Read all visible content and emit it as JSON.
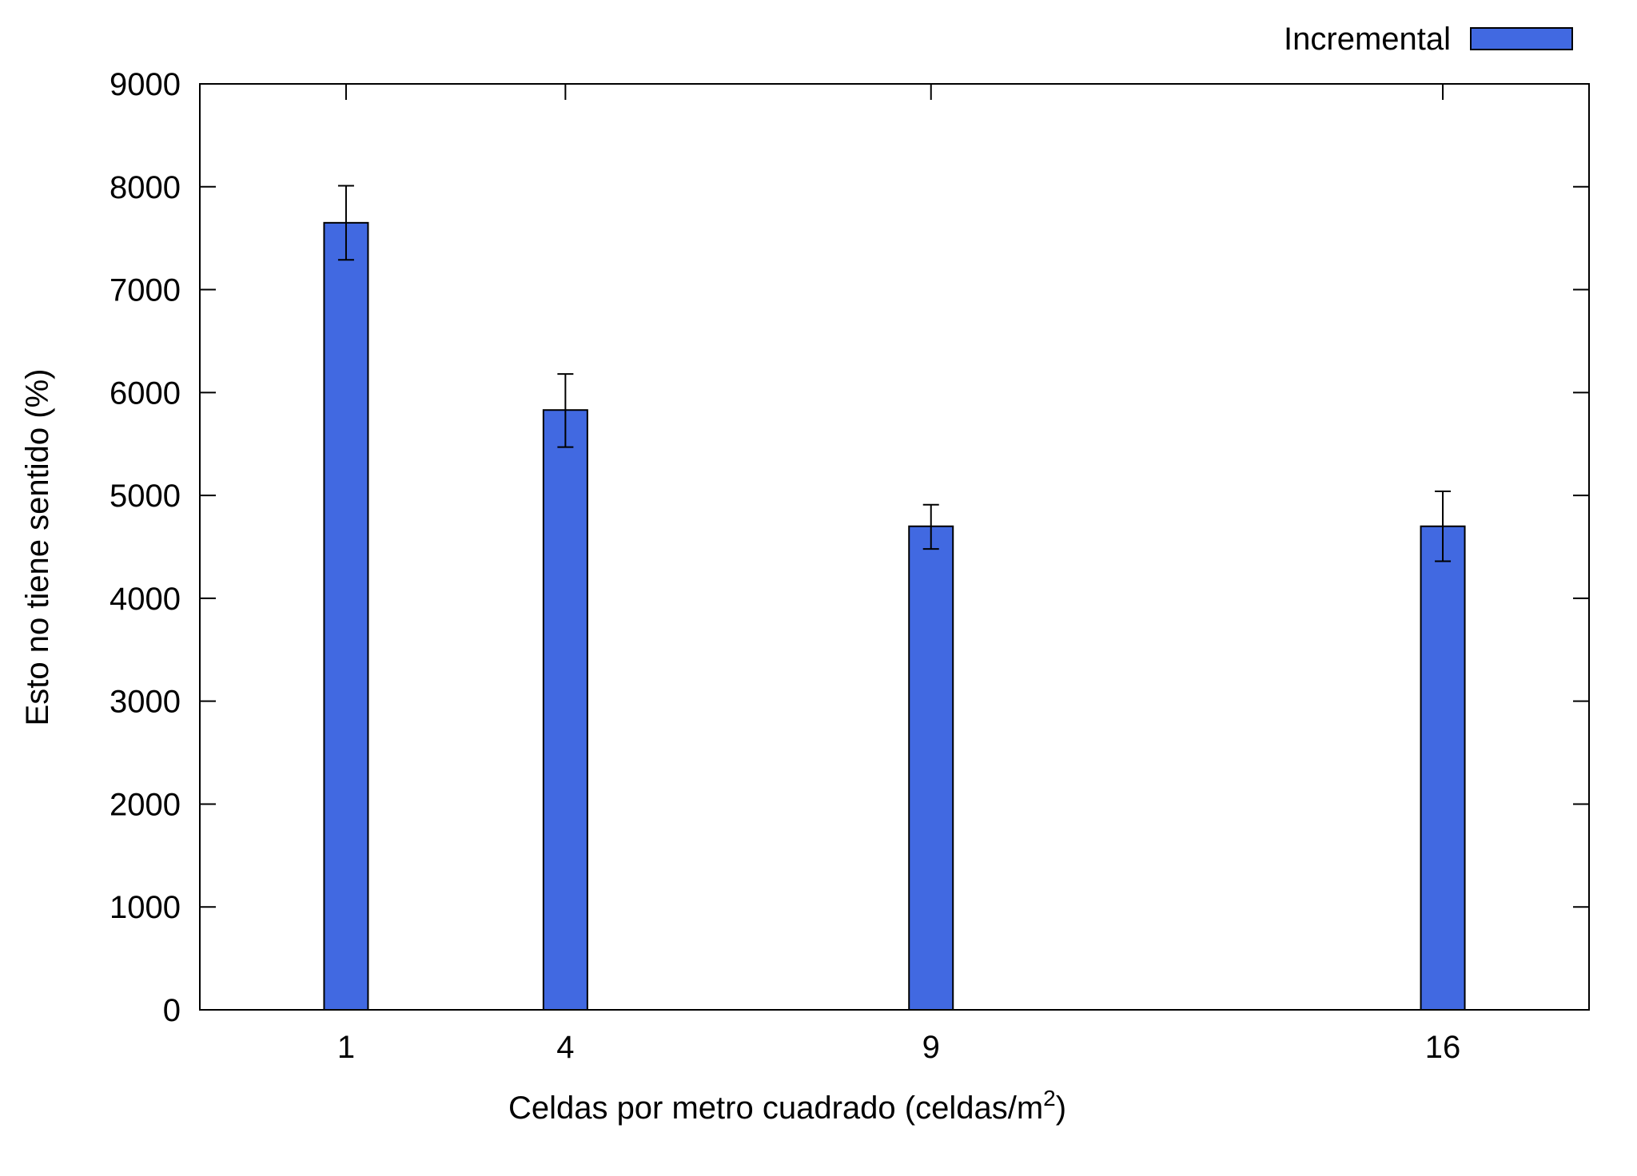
{
  "chart_data": {
    "type": "bar",
    "x": [
      1,
      4,
      9,
      16
    ],
    "categories": [
      "1",
      "4",
      "9",
      "16"
    ],
    "series": [
      {
        "name": "Incremental",
        "values": [
          7650,
          5830,
          4700,
          4700
        ],
        "error_low": [
          7290,
          5470,
          4480,
          4360
        ],
        "error_high": [
          8010,
          6180,
          4910,
          5040
        ]
      }
    ],
    "xlabel": "Celdas por metro cuadrado (celdas/m",
    "xlabel_sup": "2",
    "xlabel_end": ")",
    "ylabel": "Esto no tiene sentido (%)",
    "ylim": [
      0,
      9000
    ],
    "xlim": [
      -1,
      18
    ],
    "yticks": [
      0,
      1000,
      2000,
      3000,
      4000,
      5000,
      6000,
      7000,
      8000,
      9000
    ],
    "xticks": [
      1,
      4,
      9,
      16
    ],
    "grid": false,
    "legend_position": "top-right",
    "bar_color": "#4169e1"
  }
}
